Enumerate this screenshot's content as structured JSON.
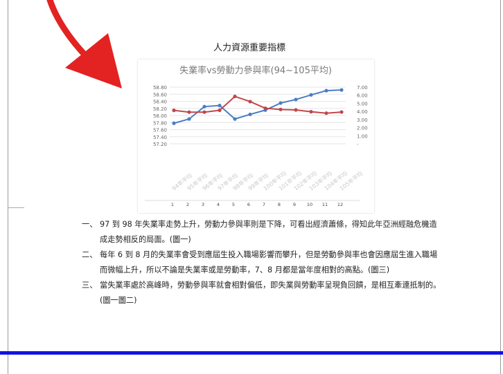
{
  "document": {
    "heading": "人力資源重要指標",
    "paragraphs": [
      {
        "num": "一、",
        "text": "97 到 98 年失業率走勢上升，勞動力參與率則是下降，可看出經濟蕭條，得知此年亞洲經融危機造成走勢相反的局面。(圖一)"
      },
      {
        "num": "二、",
        "text": "每年 6 到 8 月的失業率會受到應屆生投入職場影響而攀升，但是勞動參與率也會因應屆生進入職場而微幅上升，所以不論是失業率或是勞動率，7、8 月都是當年度相對的高點。(圖三)"
      },
      {
        "num": "三、",
        "text": "當失業率處於高峰時，勞動參與率就會相對偏低，即失業與勞動率呈現負回饋，是相互牽連抵制的。(圖一圖二)"
      }
    ]
  },
  "annotation": {
    "arrow_color": "#e32222"
  },
  "chart_data": {
    "type": "line",
    "title": "失業率vs勞動力參與率(94~105平均)",
    "categories": [
      "94年平均",
      "95年平均",
      "96年平均",
      "97年平均",
      "98年平均",
      "99年平均",
      "100年平均",
      "101年平均",
      "102年平均",
      "103年平均",
      "104年平均",
      "105年平均"
    ],
    "bottom_index_labels": [
      "1",
      "2",
      "3",
      "4",
      "5",
      "6",
      "7",
      "8",
      "9",
      "10",
      "11",
      "12"
    ],
    "left_axis": {
      "ticks": [
        "58.80",
        "58.60",
        "58.40",
        "58.20",
        "58.00",
        "57.80",
        "57.60",
        "57.40",
        "57.20"
      ],
      "min": 57.2,
      "max": 58.8
    },
    "right_axis": {
      "ticks": [
        "7.00",
        "6.00",
        "5.00",
        "4.00",
        "3.00",
        "2.00",
        "1.00",
        "-"
      ],
      "min": 0,
      "max": 7
    },
    "series": [
      {
        "axis": "left",
        "color": "#4a7ec4",
        "values": [
          57.78,
          57.9,
          58.25,
          58.28,
          57.9,
          58.03,
          58.15,
          58.35,
          58.45,
          58.58,
          58.7,
          58.72
        ]
      },
      {
        "axis": "right",
        "color": "#c0464b",
        "values": [
          4.13,
          3.91,
          3.91,
          4.14,
          5.85,
          5.21,
          4.39,
          4.24,
          4.18,
          3.96,
          3.78,
          3.92
        ]
      }
    ],
    "grid": true
  }
}
